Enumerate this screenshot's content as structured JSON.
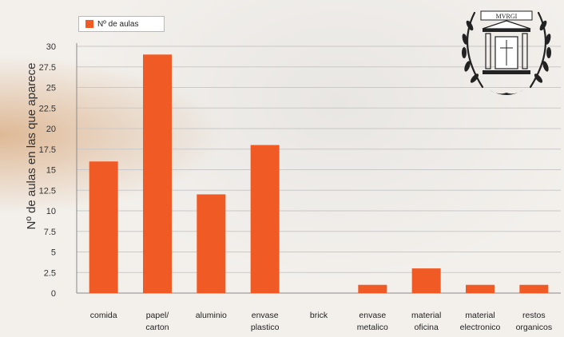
{
  "colors": {
    "bar": "#f05a24",
    "grid": "#c9c9c9",
    "axis": "#8a8a8a"
  },
  "emblem": {
    "text": "MVRGI"
  },
  "chart_data": {
    "type": "bar",
    "ylabel": "Nº de aulas en las que aparece",
    "xlabel": "",
    "ylim": [
      0,
      30
    ],
    "yticks": [
      "0",
      "2.5",
      "5",
      "7.5",
      "10",
      "12.5",
      "15",
      "17.5",
      "20",
      "22.5",
      "25",
      "27.5",
      "30"
    ],
    "grid": true,
    "legend": {
      "position": "top-left",
      "entries": [
        "Nº de aulas"
      ]
    },
    "categories": [
      [
        "comida"
      ],
      [
        "papel/",
        "carton"
      ],
      [
        "aluminio"
      ],
      [
        "envase",
        "plastico"
      ],
      [
        "brick"
      ],
      [
        "envase",
        "metalico"
      ],
      [
        "material",
        "oficina"
      ],
      [
        "material",
        "electronico"
      ],
      [
        "restos",
        "organicos"
      ]
    ],
    "series": [
      {
        "name": "Nº de aulas",
        "values": [
          16,
          29,
          12,
          18,
          0,
          1,
          3,
          1,
          1
        ]
      }
    ]
  }
}
